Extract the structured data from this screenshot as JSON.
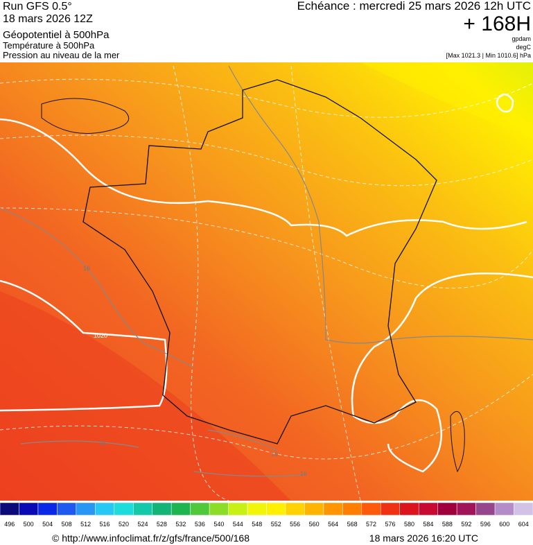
{
  "header": {
    "run": "Run GFS 0.5°",
    "run_date": "18 mars 2026 12Z",
    "line1": "Géopotentiel à 500hPa",
    "line2": "Température à 500hPa",
    "line3": "Pression au niveau de la mer",
    "valid": "Echéance : mercredi 25 mars 2026 12h UTC",
    "lead": "+ 168H",
    "unit1": "gpdam",
    "unit2": "degC",
    "range": "[Max 1021.3 | Min 1010.6] hPa"
  },
  "map": {
    "contour_labels": [
      "16",
      "1020",
      "16",
      "16",
      "16"
    ]
  },
  "colorbar": {
    "levels": [
      496,
      500,
      504,
      508,
      512,
      516,
      520,
      524,
      528,
      532,
      536,
      540,
      544,
      548,
      552,
      556,
      560,
      564,
      568,
      572,
      576,
      580,
      584,
      588,
      592,
      596,
      600,
      604
    ],
    "colors": [
      "#0a0a78",
      "#0a0ab4",
      "#0a28e6",
      "#1e5af0",
      "#2896f5",
      "#28c8f5",
      "#1edcdc",
      "#14c8aa",
      "#14b478",
      "#1eb450",
      "#50c83c",
      "#8cdc28",
      "#c8f014",
      "#f0f50a",
      "#fff000",
      "#ffd200",
      "#ffb400",
      "#ff9600",
      "#ff7d00",
      "#ff5a0a",
      "#f03214",
      "#dc141e",
      "#c80a32",
      "#a0003c",
      "#a0145a",
      "#96468c",
      "#b48cc8",
      "#d2c3e6"
    ]
  },
  "footer": {
    "url": "© http://www.infoclimat.fr/z/gfs/france/500/168",
    "stamp": "18 mars 2026 16:20 UTC"
  }
}
